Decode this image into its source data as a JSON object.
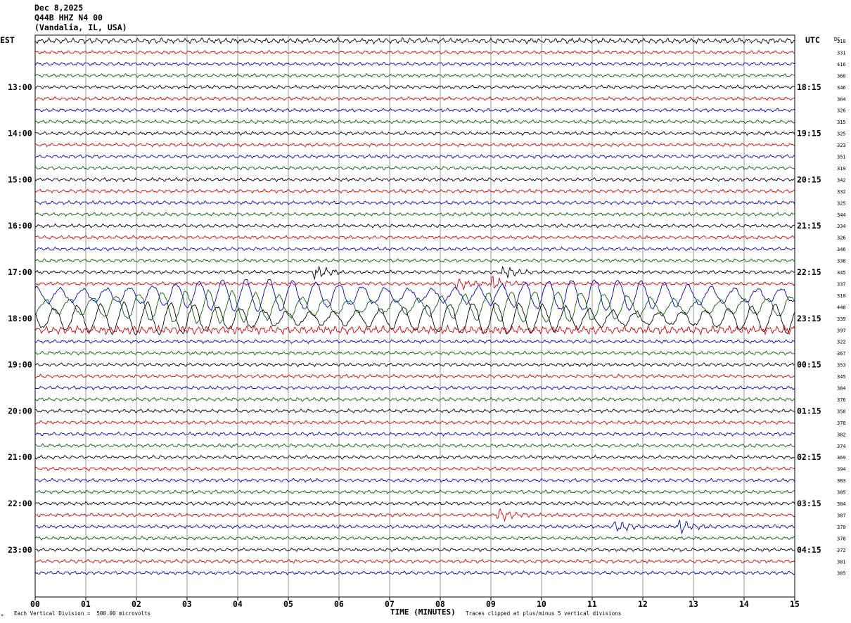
{
  "header": {
    "date": "Dec 8,2025",
    "station": "Q44B HHZ N4 00",
    "location": "(Vandalia, IL, USA)"
  },
  "left_timezone": "EST",
  "right_timezone": "UTC",
  "dc_label": "DC",
  "footer": {
    "scale_note": "Each Vertical Division =  500.00 microvolts",
    "clip_note": "Traces clipped at plus/minus 5 vertical divisions",
    "corner_mark": "∝"
  },
  "colors": {
    "black": "#000000",
    "red": "#dd0000",
    "blue": "#0000cc",
    "green": "#006400",
    "grid": "#808080"
  },
  "chart_data": {
    "type": "line",
    "title": "Q44B HHZ N4 00",
    "xlabel": "TIME (MINUTES)",
    "xlim": [
      0,
      15
    ],
    "x_ticks": [
      "00",
      "01",
      "02",
      "03",
      "04",
      "05",
      "06",
      "07",
      "08",
      "09",
      "10",
      "11",
      "12",
      "13",
      "14",
      "15"
    ],
    "trace_color_cycle": [
      "black",
      "red",
      "blue",
      "green"
    ],
    "left_hour_labels": [
      "13:00",
      "14:00",
      "15:00",
      "16:00",
      "17:00",
      "18:00",
      "19:00",
      "20:00",
      "21:00",
      "22:00",
      "23:00"
    ],
    "right_hour_labels": [
      "18:15",
      "19:15",
      "20:15",
      "21:15",
      "22:15",
      "23:15",
      "00:15",
      "01:15",
      "02:15",
      "03:15",
      "04:15"
    ],
    "dc_offsets": [
      "318",
      "331",
      "416",
      "360",
      "346",
      "364",
      "326",
      "315",
      "325",
      "323",
      "351",
      "319",
      "342",
      "332",
      "325",
      "344",
      "334",
      "326",
      "346",
      "338",
      "345",
      "337",
      "310",
      "448",
      "339",
      "397",
      "322",
      "367",
      "353",
      "345",
      "384",
      "376",
      "350",
      "378",
      "382",
      "374",
      "369",
      "394",
      "383",
      "385",
      "384",
      "387",
      "370",
      "378",
      "372",
      "381",
      "385"
    ],
    "trace_activity": [
      {
        "trace": 1,
        "amplitude": "moderate"
      },
      {
        "trace": 21,
        "event_minutes": [
          5.6,
          9.3
        ]
      },
      {
        "trace": 22,
        "event_minutes": [
          8.4,
          9.1
        ]
      },
      {
        "trace": 23,
        "amplitude": "large",
        "note": "strong long-period oscillation"
      },
      {
        "trace": 24,
        "amplitude": "large",
        "note": "strong long-period oscillation"
      },
      {
        "trace": 25,
        "amplitude": "large"
      },
      {
        "trace": 26,
        "amplitude": "elevated"
      },
      {
        "trace": 42,
        "event_minutes": [
          9.2
        ]
      },
      {
        "trace": 43,
        "event_minutes": [
          11.5,
          12.8
        ]
      }
    ]
  }
}
